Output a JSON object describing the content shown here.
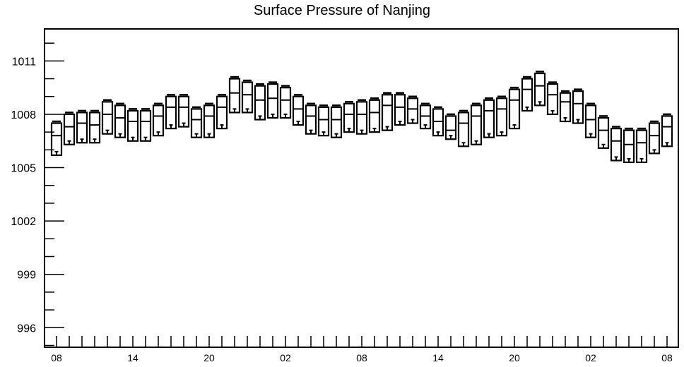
{
  "chart_data": {
    "type": "boxplot",
    "title": "Surface Pressure of Nanjing",
    "xlabel": "",
    "ylabel": "",
    "ylim": [
      994.9,
      1012.8
    ],
    "y_ticks": [
      996,
      999,
      1002,
      1005,
      1008,
      1011
    ],
    "x_tick_labels": [
      "08",
      "14",
      "20",
      "02",
      "08",
      "14",
      "20",
      "02",
      "08"
    ],
    "x_tick_label_index": [
      0,
      6,
      12,
      18,
      24,
      30,
      36,
      42,
      48
    ],
    "grid": false,
    "series": [
      {
        "count": 49,
        "max": [
          1007.6,
          1008.1,
          1008.2,
          1008.2,
          1008.8,
          1008.6,
          1008.3,
          1008.3,
          1008.6,
          1009.1,
          1009.1,
          1008.4,
          1008.6,
          1009.1,
          1010.1,
          1009.9,
          1009.7,
          1009.8,
          1009.6,
          1009.1,
          1008.6,
          1008.5,
          1008.5,
          1008.7,
          1008.8,
          1008.9,
          1009.2,
          1009.2,
          1009.0,
          1008.6,
          1008.4,
          1008.0,
          1008.2,
          1008.6,
          1008.9,
          1009.0,
          1009.5,
          1010.1,
          1010.4,
          1009.8,
          1009.3,
          1009.4,
          1008.6,
          1007.9,
          1007.3,
          1007.2,
          1007.2,
          1007.6,
          1008.0
        ],
        "q3": [
          1007.5,
          1008.0,
          1008.1,
          1008.1,
          1008.7,
          1008.5,
          1008.2,
          1008.2,
          1008.5,
          1009.0,
          1009.0,
          1008.3,
          1008.5,
          1009.0,
          1010.0,
          1009.8,
          1009.6,
          1009.7,
          1009.5,
          1009.0,
          1008.5,
          1008.4,
          1008.4,
          1008.6,
          1008.7,
          1008.8,
          1009.1,
          1009.1,
          1008.9,
          1008.5,
          1008.3,
          1007.9,
          1008.1,
          1008.5,
          1008.8,
          1008.9,
          1009.4,
          1010.0,
          1010.3,
          1009.7,
          1009.2,
          1009.3,
          1008.5,
          1007.8,
          1007.2,
          1007.1,
          1007.1,
          1007.5,
          1007.9
        ],
        "median": [
          1006.8,
          1007.3,
          1007.5,
          1007.4,
          1008.0,
          1007.8,
          1007.6,
          1007.6,
          1007.9,
          1008.4,
          1008.4,
          1007.7,
          1007.9,
          1008.4,
          1009.2,
          1009.1,
          1008.8,
          1008.9,
          1008.8,
          1008.3,
          1007.9,
          1007.7,
          1007.7,
          1008.0,
          1008.0,
          1008.1,
          1008.5,
          1008.4,
          1008.3,
          1007.9,
          1007.6,
          1007.1,
          1007.5,
          1007.9,
          1008.2,
          1008.3,
          1008.8,
          1009.4,
          1009.6,
          1009.1,
          1008.7,
          1008.6,
          1007.7,
          1007.1,
          1006.5,
          1006.3,
          1006.4,
          1006.8,
          1007.3
        ],
        "q1": [
          1005.7,
          1006.3,
          1006.4,
          1006.4,
          1006.9,
          1006.7,
          1006.5,
          1006.5,
          1006.8,
          1007.2,
          1007.3,
          1006.7,
          1006.7,
          1007.2,
          1008.1,
          1008.1,
          1007.7,
          1007.8,
          1007.8,
          1007.4,
          1006.9,
          1006.8,
          1006.7,
          1007.0,
          1006.9,
          1007.0,
          1007.1,
          1007.4,
          1007.5,
          1007.2,
          1006.8,
          1006.6,
          1006.2,
          1006.3,
          1006.7,
          1006.8,
          1007.2,
          1008.2,
          1008.5,
          1008.0,
          1007.6,
          1007.5,
          1006.7,
          1006.1,
          1005.4,
          1005.3,
          1005.3,
          1005.8,
          1006.2
        ],
        "min": [
          1005.9,
          1006.5,
          1006.6,
          1006.6,
          1007.1,
          1006.9,
          1006.7,
          1006.7,
          1007.0,
          1007.4,
          1007.5,
          1006.9,
          1006.9,
          1007.4,
          1008.3,
          1008.3,
          1007.9,
          1008.0,
          1008.0,
          1007.6,
          1007.1,
          1007.0,
          1006.9,
          1007.2,
          1007.1,
          1007.2,
          1007.3,
          1007.6,
          1007.7,
          1007.4,
          1007.0,
          1006.8,
          1006.4,
          1006.5,
          1006.9,
          1007.0,
          1007.4,
          1008.4,
          1008.7,
          1008.2,
          1007.8,
          1007.7,
          1006.9,
          1006.3,
          1005.6,
          1005.5,
          1005.5,
          1006.0,
          1006.4
        ]
      }
    ]
  }
}
